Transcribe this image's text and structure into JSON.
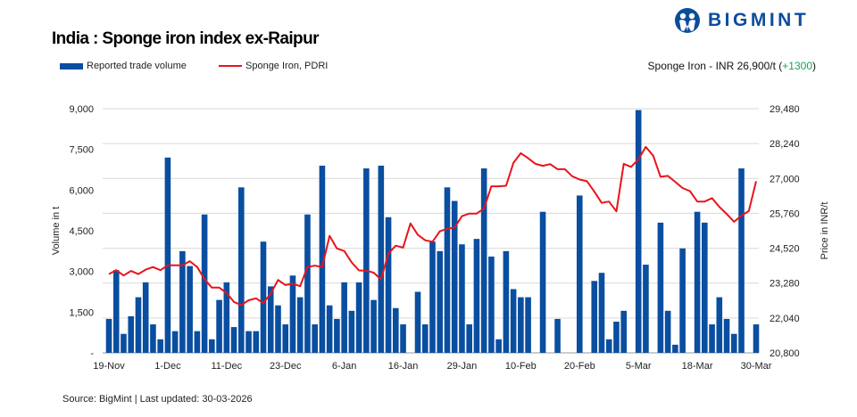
{
  "header": {
    "logo_text": "BIGMINT",
    "title": "India : Sponge iron index ex-Raipur",
    "summary_prefix": "Sponge Iron - INR 26,900/t (",
    "summary_change": "+1300",
    "summary_suffix": ")"
  },
  "footer": {
    "source": "Source: BigMint | Last updated: 30-03-2026"
  },
  "colors": {
    "bar": "#0a4ea0",
    "line": "#e8141b",
    "change_positive": "#1aa35a",
    "brand": "#0b4c9c"
  },
  "chart_data": {
    "type": "bar+line",
    "title": "India : Sponge iron index ex-Raipur",
    "legend_position": "top-left",
    "grid": true,
    "x_tick_labels": [
      "19-Nov",
      "1-Dec",
      "11-Dec",
      "23-Dec",
      "6-Jan",
      "16-Jan",
      "29-Jan",
      "10-Feb",
      "20-Feb",
      "5-Mar",
      "18-Mar",
      "30-Mar"
    ],
    "x_tick_every": 8,
    "y_left": {
      "label": "Volume in t",
      "range": [
        0,
        9000
      ],
      "ticks": [
        "-",
        "1,500",
        "3,000",
        "4,500",
        "6,000",
        "7,500",
        "9,000"
      ]
    },
    "y_right": {
      "label": "Price in INR/t",
      "range": [
        20800,
        29480
      ],
      "ticks": [
        "20,800",
        "22,040",
        "23,280",
        "24,520",
        "25,760",
        "27,000",
        "28,240",
        "29,480"
      ]
    },
    "series": [
      {
        "name": "Reported trade volume",
        "type": "bar",
        "axis": "left",
        "values": [
          1250,
          3050,
          700,
          1350,
          2050,
          2600,
          1050,
          500,
          7200,
          800,
          3750,
          3200,
          800,
          5100,
          500,
          1950,
          2600,
          950,
          6100,
          800,
          800,
          4100,
          2450,
          1750,
          1050,
          2850,
          2050,
          5100,
          1050,
          6900,
          1750,
          1250,
          2600,
          1550,
          2600,
          6800,
          1950,
          6900,
          5000,
          1650,
          1050,
          0,
          2250,
          1050,
          4100,
          3750,
          6100,
          5600,
          4000,
          1050,
          4200,
          6800,
          3550,
          500,
          3750,
          2350,
          2050,
          2050,
          0,
          5200,
          0,
          1250,
          0,
          0,
          5800,
          0,
          2650,
          2950,
          500,
          1150,
          1550,
          0,
          8950,
          3250,
          0,
          4800,
          1550,
          300,
          3850,
          0,
          5200,
          4800,
          1050,
          2050,
          1250,
          700,
          6800,
          0,
          1050
        ]
      },
      {
        "name": "Sponge Iron, PDRI",
        "type": "line",
        "axis": "right",
        "values": [
          23600,
          23740,
          23550,
          23710,
          23600,
          23760,
          23850,
          23740,
          23910,
          23910,
          23910,
          24060,
          23850,
          23420,
          23120,
          23120,
          22930,
          22610,
          22500,
          22670,
          22740,
          22570,
          22910,
          23390,
          23210,
          23260,
          23170,
          23850,
          23900,
          23850,
          24960,
          24510,
          24420,
          24020,
          23730,
          23720,
          23650,
          23410,
          24330,
          24610,
          24540,
          25400,
          25000,
          24800,
          24750,
          25120,
          25210,
          25250,
          25660,
          25750,
          25750,
          25930,
          26720,
          26720,
          26740,
          27550,
          27900,
          27720,
          27520,
          27450,
          27510,
          27330,
          27330,
          27080,
          26960,
          26900,
          26530,
          26130,
          26180,
          25830,
          27520,
          27410,
          27680,
          28120,
          27810,
          27060,
          27090,
          26880,
          26660,
          26550,
          26180,
          26180,
          26300,
          25990,
          25740,
          25460,
          25680,
          25840,
          26900
        ]
      }
    ]
  }
}
